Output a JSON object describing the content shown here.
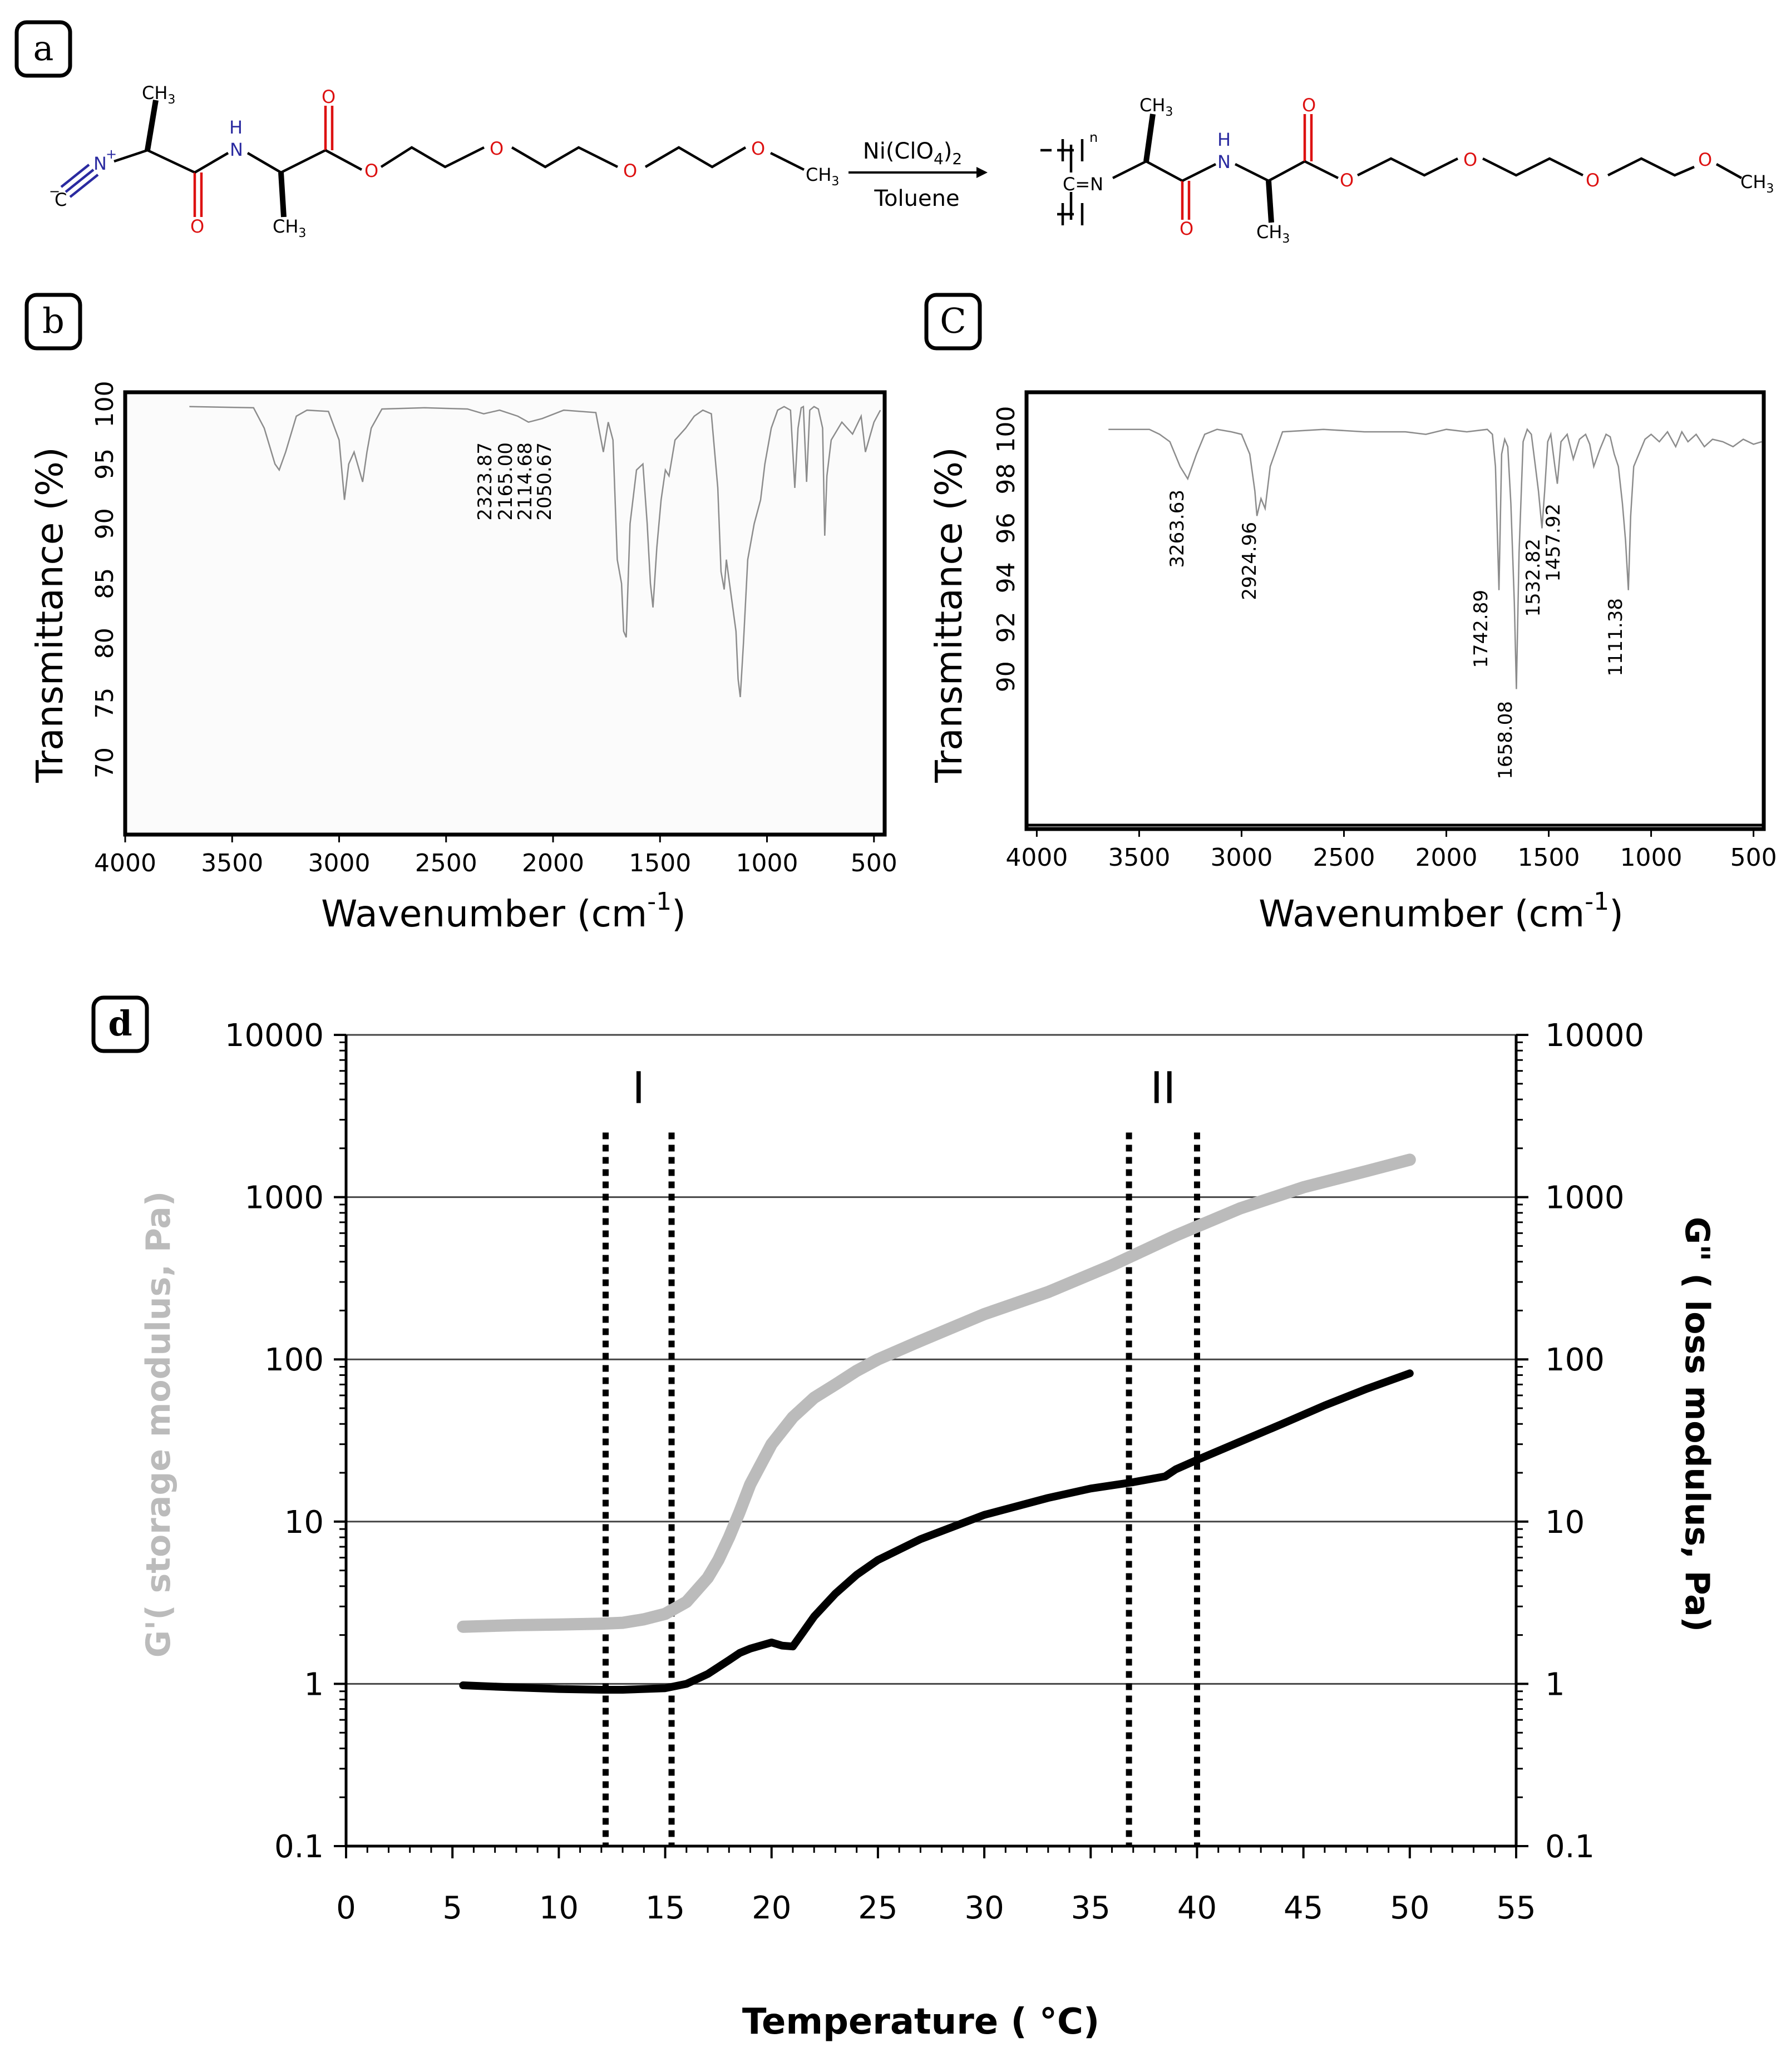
{
  "panel_labels": {
    "a": "a",
    "b": "b",
    "c": "C",
    "d": "d"
  },
  "scheme": {
    "reagent": "Ni(ClO",
    "reagent_sub": "4",
    "reagent_tail": ")",
    "reagent_sub2": "2",
    "solvent": "Toluene",
    "ch3": "CH",
    "sub3": "3",
    "atom_N": "N",
    "atom_H": "H",
    "atom_O": "O",
    "atom_C_minus": "C",
    "minus": "−",
    "plus": "+",
    "imine": "C=N",
    "n": "n"
  },
  "chart_data": [
    {
      "id": "b",
      "type": "line",
      "xlabel": "Wavenumber (cm",
      "xlabel_sup": "-1",
      "xlabel_tail": ")",
      "ylabel": "Transmittance (%)",
      "xlim": [
        4000,
        450
      ],
      "ylim": [
        64,
        101
      ],
      "xticks": [
        4000,
        3500,
        3000,
        2500,
        2000,
        1500,
        1000,
        500
      ],
      "yticks": [
        100,
        95,
        90,
        85,
        80,
        75,
        70
      ],
      "peak_labels": [
        "2323.87",
        "2165.00",
        "2114.68",
        "2050.67"
      ],
      "series": [
        {
          "color": "#8c8c8c",
          "x": [
            3700,
            3400,
            3350,
            3300,
            3280,
            3250,
            3200,
            3150,
            3050,
            3000,
            2975,
            2955,
            2930,
            2890,
            2870,
            2850,
            2800,
            2600,
            2400,
            2324,
            2250,
            2165,
            2115,
            2051,
            1950,
            1800,
            1765,
            1742,
            1720,
            1700,
            1680,
            1670,
            1658,
            1640,
            1610,
            1580,
            1560,
            1545,
            1533,
            1515,
            1495,
            1475,
            1458,
            1430,
            1380,
            1340,
            1300,
            1260,
            1230,
            1215,
            1200,
            1190,
            1175,
            1160,
            1145,
            1135,
            1125,
            1110,
            1090,
            1060,
            1030,
            1010,
            980,
            950,
            920,
            890,
            870,
            855,
            840,
            830,
            815,
            800,
            780,
            760,
            740,
            730,
            720,
            700,
            650,
            600,
            560,
            540,
            500,
            470
          ],
          "y": [
            99.8,
            99.7,
            98,
            95,
            94.5,
            96,
            99,
            99.5,
            99.4,
            97,
            92,
            95,
            96,
            93.5,
            96,
            98,
            99.6,
            99.7,
            99.6,
            99.2,
            99.5,
            99,
            98.5,
            98.8,
            99.5,
            99.3,
            96,
            98.5,
            97,
            87,
            85,
            81,
            80.5,
            90,
            94.5,
            95,
            90,
            85,
            83,
            88,
            92,
            94.5,
            94,
            97,
            98,
            99,
            99.5,
            99.2,
            93,
            86,
            84.5,
            87,
            85,
            83,
            81,
            77,
            75.5,
            80,
            87,
            90,
            92,
            95,
            98,
            99.5,
            99.8,
            99.5,
            93,
            98,
            99.7,
            99.8,
            93.5,
            99.5,
            99.8,
            99.6,
            98,
            89,
            94,
            97,
            98.5,
            97.5,
            99,
            96,
            98.5,
            99.5
          ]
        }
      ]
    },
    {
      "id": "c",
      "type": "line",
      "xlabel": "Wavenumber (cm",
      "xlabel_sup": "-1",
      "xlabel_tail": ")",
      "ylabel": "Transmittance (%)",
      "xlim": [
        4050,
        450
      ],
      "ylim": [
        84,
        101.5
      ],
      "xticks": [
        4000,
        3500,
        3000,
        2500,
        2000,
        1500,
        1000,
        500
      ],
      "yticks": [
        100,
        98,
        96,
        94,
        92,
        90
      ],
      "peak_labels": [
        "3263.63",
        "2924.96",
        "1742.89",
        "1658.08",
        "1532.82",
        "1457.92",
        "1111.38"
      ],
      "series": [
        {
          "color": "#8c8c8c",
          "x": [
            3650,
            3450,
            3400,
            3350,
            3300,
            3263,
            3220,
            3180,
            3120,
            3050,
            3000,
            2960,
            2935,
            2925,
            2905,
            2885,
            2860,
            2800,
            2600,
            2400,
            2200,
            2100,
            2000,
            1900,
            1800,
            1775,
            1760,
            1743,
            1730,
            1715,
            1700,
            1685,
            1668,
            1658,
            1645,
            1625,
            1605,
            1585,
            1565,
            1550,
            1533,
            1520,
            1505,
            1490,
            1470,
            1458,
            1440,
            1410,
            1380,
            1350,
            1320,
            1300,
            1280,
            1250,
            1220,
            1200,
            1180,
            1160,
            1140,
            1125,
            1111,
            1100,
            1085,
            1060,
            1030,
            1000,
            960,
            920,
            880,
            850,
            820,
            780,
            740,
            700,
            650,
            600,
            550,
            500,
            460
          ],
          "y": [
            100,
            100,
            99.8,
            99.5,
            98.5,
            98,
            99,
            99.8,
            100,
            99.9,
            99.8,
            99,
            97.5,
            96.5,
            97.2,
            96.8,
            98.5,
            99.9,
            100,
            99.9,
            99.9,
            99.8,
            100,
            99.9,
            100,
            99.8,
            98.5,
            93.5,
            99,
            99.6,
            99.3,
            97,
            93,
            89.5,
            95,
            99.5,
            100,
            99.8,
            98.5,
            97.5,
            96,
            97.5,
            99.5,
            99.8,
            98.5,
            97.8,
            99.5,
            99.8,
            98.8,
            99.6,
            99.8,
            99.4,
            98.5,
            99.2,
            99.8,
            99.7,
            99,
            98.5,
            97,
            95.5,
            93.5,
            96.5,
            98.5,
            99,
            99.6,
            99.8,
            99.5,
            99.9,
            99.3,
            99.9,
            99.5,
            99.8,
            99.3,
            99.6,
            99.5,
            99.3,
            99.6,
            99.4,
            99.5
          ]
        }
      ]
    },
    {
      "id": "d",
      "type": "line",
      "xlabel": "Temperature ( °C)",
      "ylabel": "G'( storage modulus, Pa)",
      "ylabel_right": "G\" ( loss modulus, Pa)",
      "y_scale": "log",
      "xlim": [
        0,
        55
      ],
      "ylim": [
        0.1,
        10000
      ],
      "xticks": [
        0,
        5,
        10,
        15,
        20,
        25,
        30,
        35,
        40,
        45,
        50,
        55
      ],
      "yticks": [
        0.1,
        1,
        10,
        100,
        1000,
        10000
      ],
      "ytick_labels": [
        "0.1",
        "1",
        "10",
        "100",
        "1000",
        "10000"
      ],
      "grid": true,
      "regions": [
        {
          "label": "I",
          "x_start": 12.2,
          "x_end": 15.3
        },
        {
          "label": "II",
          "x_start": 36.8,
          "x_end": 40
        }
      ],
      "series": [
        {
          "color": "#bbbbbb",
          "x": [
            5.5,
            8,
            10,
            12,
            13,
            14,
            15,
            16,
            17,
            17.5,
            18,
            18.5,
            19,
            20,
            21,
            22,
            23,
            24,
            25,
            27,
            30,
            33,
            36,
            39,
            42,
            45,
            48,
            50
          ],
          "y": [
            2.25,
            2.3,
            2.32,
            2.35,
            2.38,
            2.5,
            2.7,
            3.2,
            4.5,
            5.8,
            8,
            11.5,
            17,
            30,
            44,
            58,
            70,
            85,
            100,
            130,
            190,
            260,
            380,
            580,
            850,
            1150,
            1450,
            1700
          ]
        },
        {
          "color": "#000000",
          "x": [
            5.5,
            8,
            10,
            12,
            13,
            14,
            15,
            16,
            17,
            18,
            18.5,
            19,
            20,
            20.5,
            21,
            21.5,
            22,
            23,
            24,
            25,
            27,
            30,
            33,
            35,
            37,
            38.5,
            39,
            40,
            42,
            44,
            46,
            48,
            50
          ],
          "y": [
            0.98,
            0.95,
            0.93,
            0.92,
            0.92,
            0.93,
            0.94,
            1.0,
            1.15,
            1.4,
            1.55,
            1.65,
            1.8,
            1.72,
            1.7,
            2.1,
            2.6,
            3.6,
            4.7,
            5.8,
            7.8,
            11,
            14,
            16,
            17.5,
            19,
            21,
            24,
            31,
            40,
            52,
            66,
            82
          ]
        }
      ]
    }
  ]
}
